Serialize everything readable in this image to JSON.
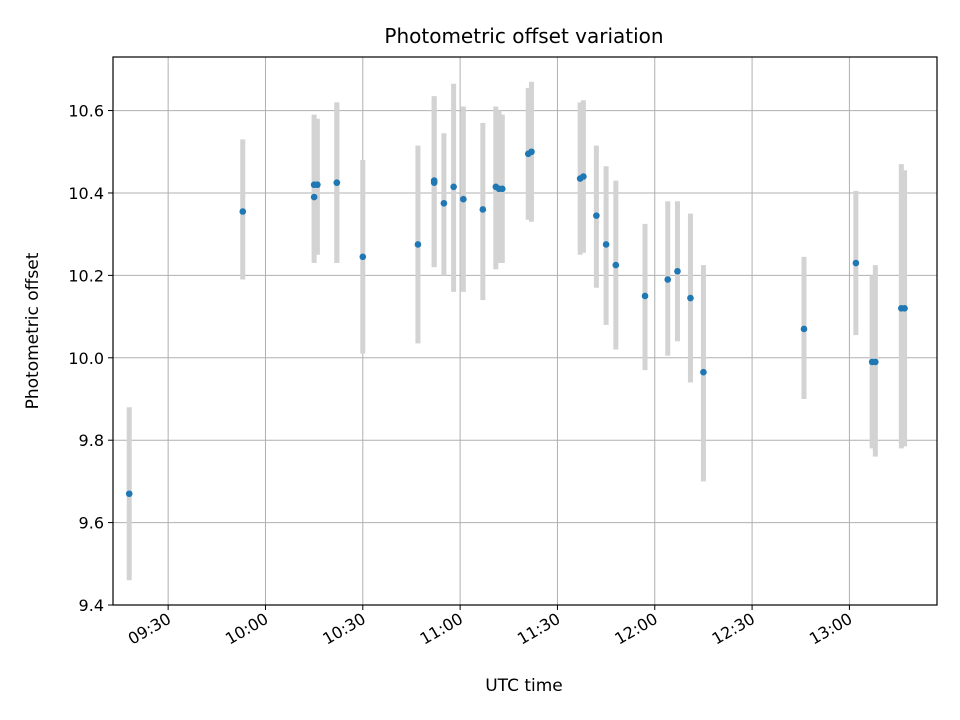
{
  "chart_data": {
    "type": "scatter",
    "title": "Photometric offset variation",
    "xlabel": "UTC time",
    "ylabel": "Photometric offset",
    "xlim": [
      "09:13",
      "13:27"
    ],
    "ylim": [
      9.4,
      10.73
    ],
    "x_ticks": [
      "09:30",
      "10:00",
      "10:30",
      "11:00",
      "11:30",
      "12:00",
      "12:30",
      "13:00"
    ],
    "y_ticks": [
      "9.4",
      "9.6",
      "9.8",
      "10.0",
      "10.2",
      "10.4",
      "10.6"
    ],
    "grid": true,
    "errorbar_color": "#d3d3d3",
    "marker_color": "#1f77b4",
    "points": [
      {
        "x": "09:18",
        "y": 9.67,
        "lo": 9.46,
        "hi": 9.88
      },
      {
        "x": "09:53",
        "y": 10.355,
        "lo": 10.19,
        "hi": 10.53
      },
      {
        "x": "10:15",
        "y": 10.39,
        "lo": 10.23,
        "hi": 10.59
      },
      {
        "x": "10:15",
        "y": 10.42,
        "lo": 10.26,
        "hi": 10.58
      },
      {
        "x": "10:16",
        "y": 10.42,
        "lo": 10.25,
        "hi": 10.58
      },
      {
        "x": "10:22",
        "y": 10.425,
        "lo": 10.23,
        "hi": 10.62
      },
      {
        "x": "10:22",
        "y": 10.425,
        "lo": 10.23,
        "hi": 10.62
      },
      {
        "x": "10:30",
        "y": 10.245,
        "lo": 10.01,
        "hi": 10.48
      },
      {
        "x": "10:47",
        "y": 10.275,
        "lo": 10.035,
        "hi": 10.515
      },
      {
        "x": "10:52",
        "y": 10.43,
        "lo": 10.22,
        "hi": 10.635
      },
      {
        "x": "10:52",
        "y": 10.425,
        "lo": 10.22,
        "hi": 10.63
      },
      {
        "x": "10:55",
        "y": 10.375,
        "lo": 10.2,
        "hi": 10.545
      },
      {
        "x": "10:58",
        "y": 10.415,
        "lo": 10.16,
        "hi": 10.665
      },
      {
        "x": "11:01",
        "y": 10.385,
        "lo": 10.16,
        "hi": 10.61
      },
      {
        "x": "11:07",
        "y": 10.36,
        "lo": 10.14,
        "hi": 10.57
      },
      {
        "x": "11:11",
        "y": 10.415,
        "lo": 10.215,
        "hi": 10.61
      },
      {
        "x": "11:12",
        "y": 10.41,
        "lo": 10.23,
        "hi": 10.6
      },
      {
        "x": "11:13",
        "y": 10.41,
        "lo": 10.23,
        "hi": 10.59
      },
      {
        "x": "11:21",
        "y": 10.495,
        "lo": 10.335,
        "hi": 10.655
      },
      {
        "x": "11:22",
        "y": 10.5,
        "lo": 10.33,
        "hi": 10.67
      },
      {
        "x": "11:37",
        "y": 10.435,
        "lo": 10.25,
        "hi": 10.62
      },
      {
        "x": "11:38",
        "y": 10.44,
        "lo": 10.255,
        "hi": 10.625
      },
      {
        "x": "11:42",
        "y": 10.345,
        "lo": 10.17,
        "hi": 10.515
      },
      {
        "x": "11:45",
        "y": 10.275,
        "lo": 10.08,
        "hi": 10.465
      },
      {
        "x": "11:48",
        "y": 10.225,
        "lo": 10.02,
        "hi": 10.43
      },
      {
        "x": "11:57",
        "y": 10.15,
        "lo": 9.97,
        "hi": 10.325
      },
      {
        "x": "12:04",
        "y": 10.19,
        "lo": 10.005,
        "hi": 10.38
      },
      {
        "x": "12:07",
        "y": 10.21,
        "lo": 10.04,
        "hi": 10.38
      },
      {
        "x": "12:11",
        "y": 10.145,
        "lo": 9.94,
        "hi": 10.35
      },
      {
        "x": "12:15",
        "y": 9.965,
        "lo": 9.7,
        "hi": 10.225
      },
      {
        "x": "12:46",
        "y": 10.07,
        "lo": 9.9,
        "hi": 10.245
      },
      {
        "x": "13:02",
        "y": 10.23,
        "lo": 10.055,
        "hi": 10.405
      },
      {
        "x": "13:07",
        "y": 9.99,
        "lo": 9.78,
        "hi": 10.2
      },
      {
        "x": "13:08",
        "y": 9.99,
        "lo": 9.76,
        "hi": 10.225
      },
      {
        "x": "13:16",
        "y": 10.12,
        "lo": 9.78,
        "hi": 10.47
      },
      {
        "x": "13:17",
        "y": 10.12,
        "lo": 9.785,
        "hi": 10.455
      }
    ]
  }
}
